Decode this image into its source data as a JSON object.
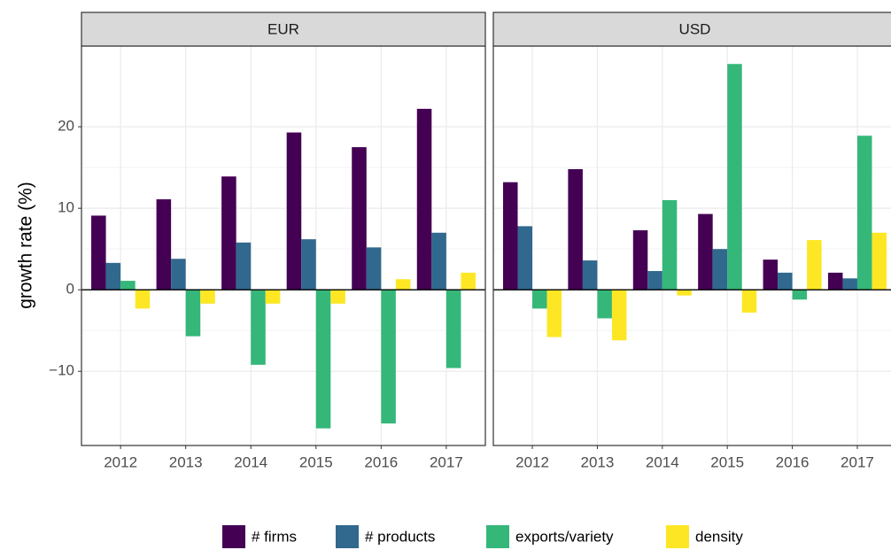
{
  "chart_data": [
    {
      "type": "bar",
      "title": "EUR",
      "ylabel": "growth rate (%)",
      "categories": [
        "2012",
        "2013",
        "2014",
        "2015",
        "2016",
        "2017"
      ],
      "series": [
        {
          "name": "# firms",
          "color": "#440154",
          "values": [
            9.1,
            11.1,
            13.9,
            19.3,
            17.5,
            22.2
          ]
        },
        {
          "name": "# products",
          "color": "#31688e",
          "values": [
            3.3,
            3.8,
            5.8,
            6.2,
            5.2,
            7.0
          ]
        },
        {
          "name": "exports/variety",
          "color": "#35b779",
          "values": [
            1.1,
            -5.7,
            -9.2,
            -17.0,
            -16.4,
            -9.6
          ]
        },
        {
          "name": "density",
          "color": "#fde725",
          "values": [
            -2.3,
            -1.7,
            -1.7,
            -1.7,
            1.3,
            2.1
          ]
        }
      ],
      "ylim": [
        -19.1,
        29.9
      ],
      "yticks": [
        {
          "value": -10,
          "label": "−10"
        },
        0,
        10,
        20
      ],
      "grid": true,
      "legend": "bottom"
    },
    {
      "type": "bar",
      "title": "USD",
      "categories": [
        "2012",
        "2013",
        "2014",
        "2015",
        "2016",
        "2017"
      ],
      "series": [
        {
          "name": "# firms",
          "color": "#440154",
          "values": [
            13.2,
            14.8,
            7.3,
            9.3,
            3.7,
            2.1
          ]
        },
        {
          "name": "# products",
          "color": "#31688e",
          "values": [
            7.8,
            3.6,
            2.3,
            5.0,
            2.1,
            1.4
          ]
        },
        {
          "name": "exports/variety",
          "color": "#35b779",
          "values": [
            -2.3,
            -3.5,
            11.0,
            27.7,
            -1.2,
            18.9
          ]
        },
        {
          "name": "density",
          "color": "#fde725",
          "values": [
            -5.8,
            -6.2,
            -0.7,
            -2.8,
            6.1,
            7.0
          ]
        }
      ],
      "ylim": [
        -19.1,
        29.9
      ],
      "yticks": [
        -10,
        0,
        10,
        20
      ],
      "grid": true
    }
  ]
}
